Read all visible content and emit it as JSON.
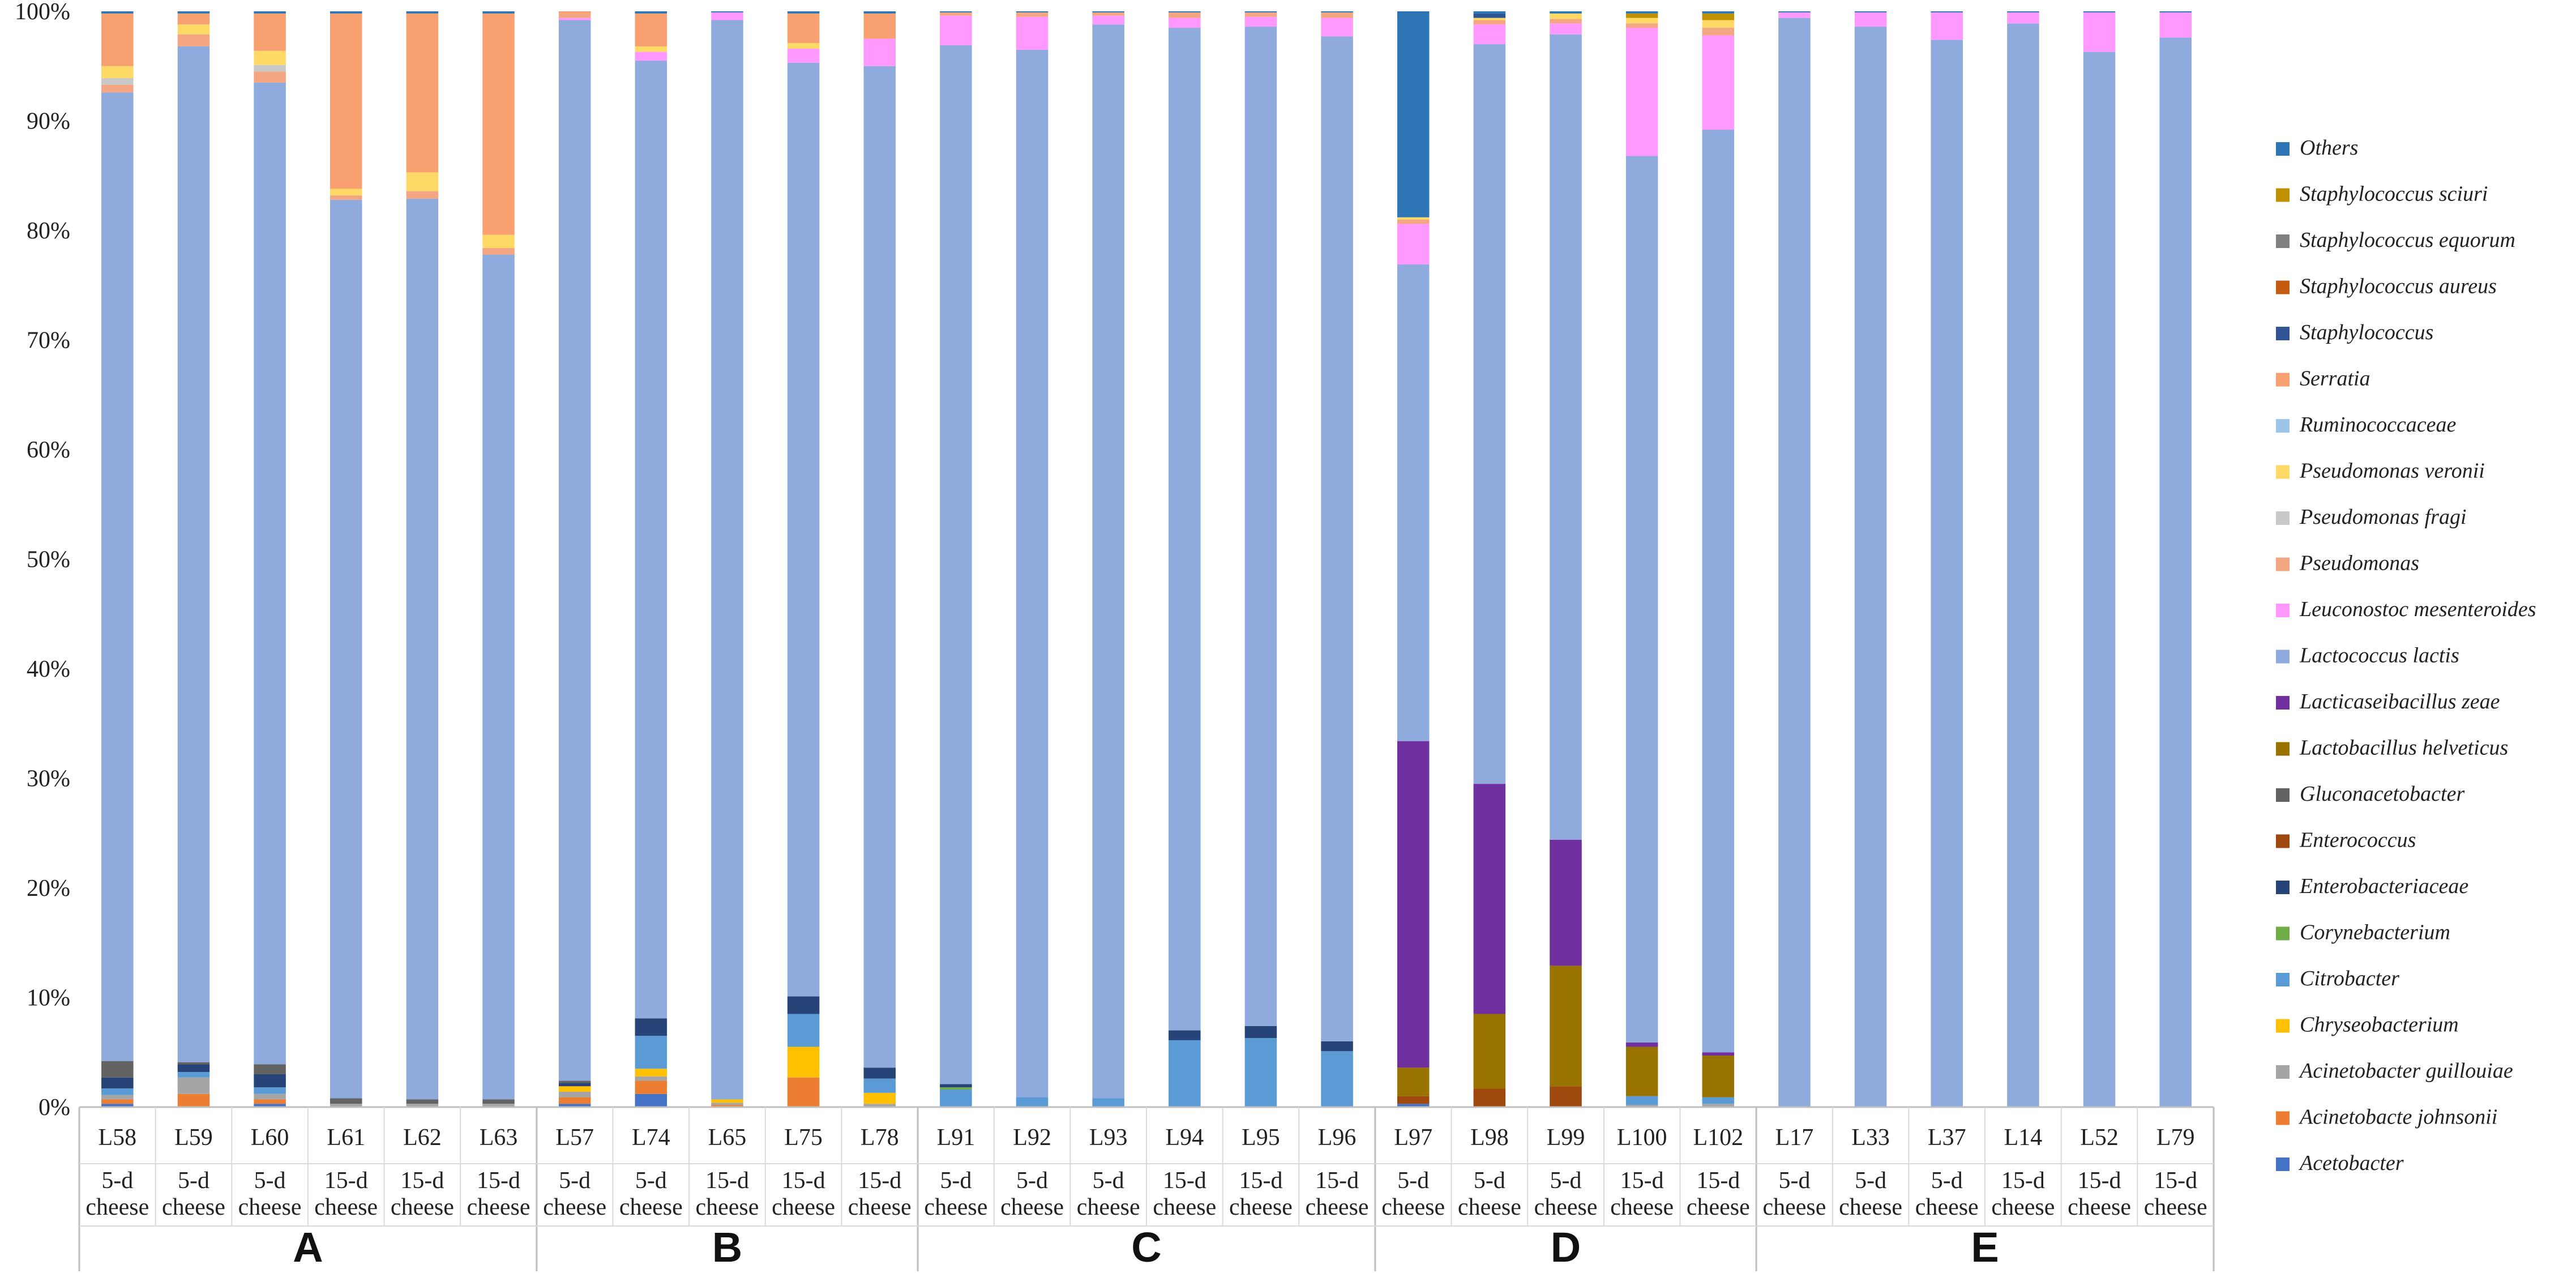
{
  "chart_data": {
    "type": "stacked-bar-100",
    "title": "",
    "xlabel": "",
    "ylabel": "",
    "ylim": [
      0,
      100
    ],
    "y_ticks": [
      "0%",
      "10%",
      "20%",
      "30%",
      "40%",
      "50%",
      "60%",
      "70%",
      "80%",
      "90%",
      "100%"
    ],
    "grid": false,
    "legend_position": "right",
    "legend_order_top_to_bottom": [
      "Others",
      "Staphylococcus sciuri",
      "Staphylococcus equorum",
      "Staphylococcus aureus",
      "Staphylococcus",
      "Serratia",
      "Ruminococcaceae",
      "Pseudomonas veronii",
      "Pseudomonas fragi",
      "Pseudomonas",
      "Leuconostoc mesenteroides",
      "Lactococcus lactis",
      "Lacticaseibacillus zeae",
      "Lactobacillus helveticus",
      "Gluconacetobacter",
      "Enterococcus",
      "Enterobacteriaceae",
      "Corynebacterium",
      "Citrobacter",
      "Chryseobacterium",
      "Acinetobacter guillouiae",
      "Acinetobacte johnsonii",
      "Acetobacter"
    ],
    "taxa": [
      {
        "name": "Acetobacter",
        "color": "#4472c4"
      },
      {
        "name": "Acinetobacte johnsonii",
        "color": "#ed7d31"
      },
      {
        "name": "Acinetobacter guillouiae",
        "color": "#a5a5a5"
      },
      {
        "name": "Chryseobacterium",
        "color": "#ffc000"
      },
      {
        "name": "Citrobacter",
        "color": "#5b9bd5"
      },
      {
        "name": "Corynebacterium",
        "color": "#70ad47"
      },
      {
        "name": "Enterobacteriaceae",
        "color": "#264478"
      },
      {
        "name": "Enterococcus",
        "color": "#9e480e"
      },
      {
        "name": "Gluconacetobacter",
        "color": "#636363"
      },
      {
        "name": "Lactobacillus helveticus",
        "color": "#997300"
      },
      {
        "name": "Lacticaseibacillus zeae",
        "color": "#7030a0"
      },
      {
        "name": "Lactococcus lactis",
        "color": "#8faadc"
      },
      {
        "name": "Leuconostoc mesenteroides",
        "color": "#ff99ff"
      },
      {
        "name": "Pseudomonas",
        "color": "#f4a582"
      },
      {
        "name": "Pseudomonas fragi",
        "color": "#c9c9c9"
      },
      {
        "name": "Pseudomonas veronii",
        "color": "#ffd966"
      },
      {
        "name": "Ruminococcaceae",
        "color": "#9dc3e6"
      },
      {
        "name": "Serratia",
        "color": "#f8a070"
      },
      {
        "name": "Staphylococcus",
        "color": "#2f5597"
      },
      {
        "name": "Staphylococcus aureus",
        "color": "#c55a11"
      },
      {
        "name": "Staphylococcus equorum",
        "color": "#7f7f7f"
      },
      {
        "name": "Staphylococcus sciuri",
        "color": "#bf9000"
      },
      {
        "name": "Others",
        "color": "#2e75b6"
      }
    ],
    "groups": [
      {
        "label": "A",
        "samples": [
          {
            "id": "L58",
            "age": "5-d",
            "type": "cheese",
            "values": {
              "Acetobacter": 0.3,
              "Acinetobacte johnsonii": 0.4,
              "Acinetobacter guillouiae": 0.4,
              "Citrobacter": 0.6,
              "Enterobacteriaceae": 1.0,
              "Gluconacetobacter": 1.5,
              "Lactococcus lactis": 88.4,
              "Pseudomonas": 0.7,
              "Pseudomonas fragi": 0.6,
              "Pseudomonas veronii": 1.1,
              "Serratia": 4.8,
              "Others": 0.2
            }
          },
          {
            "id": "L59",
            "age": "5-d",
            "type": "cheese",
            "values": {
              "Acinetobacte johnsonii": 1.2,
              "Acinetobacter guillouiae": 1.5,
              "Citrobacter": 0.5,
              "Enterobacteriaceae": 0.7,
              "Gluconacetobacter": 0.2,
              "Lactococcus lactis": 92.7,
              "Pseudomonas": 1.1,
              "Pseudomonas veronii": 0.9,
              "Serratia": 1.0,
              "Others": 0.2
            }
          },
          {
            "id": "L60",
            "age": "5-d",
            "type": "cheese",
            "values": {
              "Acetobacter": 0.3,
              "Acinetobacte johnsonii": 0.4,
              "Acinetobacter guillouiae": 0.5,
              "Citrobacter": 0.6,
              "Enterobacteriaceae": 1.2,
              "Gluconacetobacter": 0.9,
              "Lactococcus lactis": 89.6,
              "Pseudomonas": 1.0,
              "Pseudomonas fragi": 0.6,
              "Pseudomonas veronii": 1.3,
              "Serratia": 3.4,
              "Others": 0.2
            }
          },
          {
            "id": "L61",
            "age": "15-d",
            "type": "cheese",
            "values": {
              "Acinetobacter guillouiae": 0.3,
              "Gluconacetobacter": 0.5,
              "Lactococcus lactis": 82.0,
              "Pseudomonas": 0.4,
              "Pseudomonas veronii": 0.6,
              "Serratia": 16.0,
              "Others": 0.2
            }
          },
          {
            "id": "L62",
            "age": "15-d",
            "type": "cheese",
            "values": {
              "Acinetobacter guillouiae": 0.3,
              "Gluconacetobacter": 0.4,
              "Lactococcus lactis": 82.2,
              "Pseudomonas": 0.7,
              "Pseudomonas veronii": 1.7,
              "Serratia": 14.5,
              "Others": 0.2
            }
          },
          {
            "id": "L63",
            "age": "15-d",
            "type": "cheese",
            "values": {
              "Acinetobacter guillouiae": 0.3,
              "Gluconacetobacter": 0.4,
              "Lactococcus lactis": 77.1,
              "Pseudomonas": 0.6,
              "Pseudomonas veronii": 1.2,
              "Serratia": 20.2,
              "Others": 0.2
            }
          }
        ]
      },
      {
        "label": "B",
        "samples": [
          {
            "id": "L57",
            "age": "5-d",
            "type": "cheese",
            "values": {
              "Acetobacter": 0.3,
              "Acinetobacte johnsonii": 0.6,
              "Acinetobacter guillouiae": 0.5,
              "Chryseobacterium": 0.5,
              "Enterobacteriaceae": 0.3,
              "Gluconacetobacter": 0.2,
              "Lactococcus lactis": 96.8,
              "Pseudomonas": 0.4,
              "Serratia": 0.2,
              "Leuconostoc mesenteroides": 0.2
            }
          },
          {
            "id": "L74",
            "age": "5-d",
            "type": "cheese",
            "values": {
              "Acetobacter": 1.2,
              "Acinetobacte johnsonii": 1.2,
              "Chryseobacterium": 0.7,
              "Acinetobacter guillouiae": 0.4,
              "Citrobacter": 3.0,
              "Enterobacteriaceae": 1.6,
              "Lactococcus lactis": 87.4,
              "Leuconostoc mesenteroides": 0.8,
              "Pseudomonas veronii": 0.5,
              "Serratia": 3.0,
              "Others": 0.2
            }
          },
          {
            "id": "L65",
            "age": "15-d",
            "type": "cheese",
            "values": {
              "Acinetobacte johnsonii": 0.2,
              "Acinetobacter guillouiae": 0.2,
              "Chryseobacterium": 0.3,
              "Lactococcus lactis": 98.5,
              "Leuconostoc mesenteroides": 0.7,
              "Others": 0.1
            }
          },
          {
            "id": "L75",
            "age": "15-d",
            "type": "cheese",
            "values": {
              "Acinetobacte johnsonii": 2.7,
              "Chryseobacterium": 2.8,
              "Citrobacter": 3.0,
              "Enterobacteriaceae": 1.6,
              "Lactococcus lactis": 85.2,
              "Leuconostoc mesenteroides": 1.3,
              "Pseudomonas veronii": 0.5,
              "Serratia": 2.7,
              "Others": 0.2
            }
          },
          {
            "id": "L78",
            "age": "15-d",
            "type": "cheese",
            "values": {
              "Acinetobacter guillouiae": 0.3,
              "Chryseobacterium": 1.0,
              "Citrobacter": 1.3,
              "Enterobacteriaceae": 1.0,
              "Lactococcus lactis": 91.4,
              "Leuconostoc mesenteroides": 2.5,
              "Serratia": 2.3,
              "Others": 0.2
            }
          }
        ]
      },
      {
        "label": "C",
        "samples": [
          {
            "id": "L91",
            "age": "5-d",
            "type": "cheese",
            "values": {
              "Citrobacter": 1.6,
              "Enterobacteriaceae": 0.3,
              "Lactococcus lactis": 94.8,
              "Leuconostoc mesenteroides": 2.7,
              "Pseudomonas": 0.3,
              "Corynebacterium": 0.2,
              "Others": 0.1
            }
          },
          {
            "id": "L92",
            "age": "5-d",
            "type": "cheese",
            "values": {
              "Citrobacter": 0.9,
              "Lactococcus lactis": 95.6,
              "Leuconostoc mesenteroides": 3.0,
              "Pseudomonas": 0.4,
              "Others": 0.1
            }
          },
          {
            "id": "L93",
            "age": "5-d",
            "type": "cheese",
            "values": {
              "Citrobacter": 0.8,
              "Lactococcus lactis": 98.0,
              "Leuconostoc mesenteroides": 0.8,
              "Pseudomonas": 0.3,
              "Others": 0.1
            }
          },
          {
            "id": "L94",
            "age": "15-d",
            "type": "cheese",
            "values": {
              "Citrobacter": 6.1,
              "Enterobacteriaceae": 0.9,
              "Lactococcus lactis": 91.5,
              "Leuconostoc mesenteroides": 0.9,
              "Pseudomonas": 0.5,
              "Others": 0.1
            }
          },
          {
            "id": "L95",
            "age": "15-d",
            "type": "cheese",
            "values": {
              "Citrobacter": 6.3,
              "Enterobacteriaceae": 1.1,
              "Lactococcus lactis": 91.2,
              "Leuconostoc mesenteroides": 0.9,
              "Pseudomonas": 0.4,
              "Others": 0.1
            }
          },
          {
            "id": "L96",
            "age": "15-d",
            "type": "cheese",
            "values": {
              "Citrobacter": 5.1,
              "Enterobacteriaceae": 0.9,
              "Lactococcus lactis": 91.7,
              "Leuconostoc mesenteroides": 1.7,
              "Pseudomonas": 0.5,
              "Others": 0.1
            }
          }
        ]
      },
      {
        "label": "D",
        "samples": [
          {
            "id": "L97",
            "age": "5-d",
            "type": "cheese",
            "values": {
              "Acetobacter": 0.3,
              "Enterococcus": 0.7,
              "Lactobacillus helveticus": 2.6,
              "Lacticaseibacillus zeae": 29.8,
              "Lactococcus lactis": 43.5,
              "Leuconostoc mesenteroides": 3.7,
              "Pseudomonas": 0.4,
              "Pseudomonas veronii": 0.2,
              "Others": 18.8
            }
          },
          {
            "id": "L98",
            "age": "5-d",
            "type": "cheese",
            "values": {
              "Enterococcus": 1.7,
              "Lactobacillus helveticus": 6.8,
              "Lacticaseibacillus zeae": 21.0,
              "Lactococcus lactis": 67.5,
              "Leuconostoc mesenteroides": 1.8,
              "Pseudomonas": 0.4,
              "Pseudomonas veronii": 0.2,
              "Staphylococcus": 0.4,
              "Others": 0.2
            }
          },
          {
            "id": "L99",
            "age": "5-d",
            "type": "cheese",
            "values": {
              "Enterococcus": 1.9,
              "Lactobacillus helveticus": 11.0,
              "Lacticaseibacillus zeae": 11.5,
              "Lactococcus lactis": 73.5,
              "Leuconostoc mesenteroides": 1.0,
              "Pseudomonas": 0.4,
              "Pseudomonas veronii": 0.5,
              "Others": 0.2
            }
          },
          {
            "id": "L100",
            "age": "15-d",
            "type": "cheese",
            "values": {
              "Acinetobacter guillouiae": 0.2,
              "Citrobacter": 0.8,
              "Lactobacillus helveticus": 4.5,
              "Lacticaseibacillus zeae": 0.4,
              "Lactococcus lactis": 80.9,
              "Leuconostoc mesenteroides": 11.7,
              "Staphylococcus sciuri": 0.4,
              "Pseudomonas veronii": 0.5,
              "Pseudomonas": 0.4,
              "Others": 0.2
            }
          },
          {
            "id": "L102",
            "age": "15-d",
            "type": "cheese",
            "values": {
              "Acinetobacter guillouiae": 0.3,
              "Citrobacter": 0.6,
              "Lactobacillus helveticus": 3.8,
              "Lacticaseibacillus zeae": 0.3,
              "Lactococcus lactis": 84.2,
              "Leuconostoc mesenteroides": 8.6,
              "Staphylococcus sciuri": 0.6,
              "Pseudomonas veronii": 0.7,
              "Pseudomonas": 0.7,
              "Others": 0.2
            }
          }
        ]
      },
      {
        "label": "E",
        "samples": [
          {
            "id": "L17",
            "age": "5-d",
            "type": "cheese",
            "values": {
              "Lactococcus lactis": 99.4,
              "Leuconostoc mesenteroides": 0.5,
              "Others": 0.1
            }
          },
          {
            "id": "L33",
            "age": "5-d",
            "type": "cheese",
            "values": {
              "Lactococcus lactis": 98.6,
              "Leuconostoc mesenteroides": 1.3,
              "Others": 0.1
            }
          },
          {
            "id": "L37",
            "age": "5-d",
            "type": "cheese",
            "values": {
              "Lactococcus lactis": 97.4,
              "Leuconostoc mesenteroides": 2.5,
              "Others": 0.1
            }
          },
          {
            "id": "L14",
            "age": "15-d",
            "type": "cheese",
            "values": {
              "Lactococcus lactis": 98.9,
              "Leuconostoc mesenteroides": 1.0,
              "Others": 0.1
            }
          },
          {
            "id": "L52",
            "age": "15-d",
            "type": "cheese",
            "values": {
              "Lactococcus lactis": 96.3,
              "Leuconostoc mesenteroides": 3.6,
              "Others": 0.1
            }
          },
          {
            "id": "L79",
            "age": "15-d",
            "type": "cheese",
            "values": {
              "Lactococcus lactis": 97.6,
              "Leuconostoc mesenteroides": 2.3,
              "Others": 0.1
            }
          }
        ]
      }
    ]
  }
}
